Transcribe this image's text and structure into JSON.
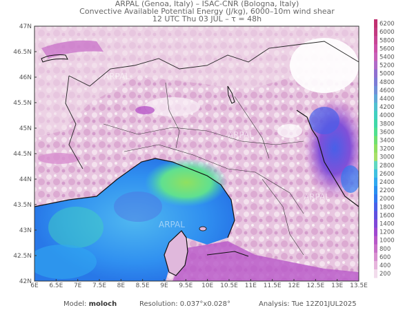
{
  "header": {
    "line1": "ARPAL (Genoa, Italy)  –  ISAC-CNR (Bologna, Italy)",
    "line2": "Convective Available Potential Energy (J/kg), 6000–10m wind shear",
    "line3": "12 UTC Thu 03 JUL  –  τ = 48h"
  },
  "map": {
    "lat_labels": [
      "47N",
      "46.5N",
      "46N",
      "45.5N",
      "45N",
      "44.5N",
      "44N",
      "43.5N",
      "43N",
      "42.5N",
      "42N"
    ],
    "lon_labels": [
      "6E",
      "6.5E",
      "7E",
      "7.5E",
      "8E",
      "8.5E",
      "9E",
      "9.5E",
      "10E",
      "10.5E",
      "11E",
      "11.5E",
      "12E",
      "12.5E",
      "13E",
      "13.5E"
    ],
    "watermark": "ARPAL"
  },
  "colorbar": {
    "labels": [
      "6200",
      "6000",
      "5800",
      "5600",
      "5400",
      "5200",
      "5000",
      "4800",
      "4600",
      "4400",
      "4200",
      "4000",
      "3800",
      "3600",
      "3400",
      "3200",
      "3000",
      "2800",
      "2600",
      "2400",
      "2200",
      "2000",
      "1800",
      "1600",
      "1400",
      "1200",
      "1000",
      "800",
      "600",
      "400",
      "200"
    ],
    "colors": [
      "#c03070",
      "#c23a80",
      "#c84595",
      "#cc50a8",
      "#c860b8",
      "#b06ac8",
      "#9070d0",
      "#7c7cd6",
      "#7090d8",
      "#60a8d8",
      "#50c0d0",
      "#40d0c0",
      "#40d8a8",
      "#50e090",
      "#70e070",
      "#90e060",
      "#a8e068",
      "#60d8c0",
      "#40c0e0",
      "#30a8f0",
      "#2890f0",
      "#3078f0",
      "#4860e8",
      "#6050e0",
      "#8048d8",
      "#a048d0",
      "#b858c8",
      "#c870c8",
      "#d890d0",
      "#e6b4dc",
      "#f2dcec"
    ]
  },
  "footer": {
    "model_label": "Model:",
    "model_value": "moloch",
    "resolution": "Resolution: 0.037°x0.028°",
    "analysis": "Analysis: Tue 12Z01JUL2025"
  }
}
